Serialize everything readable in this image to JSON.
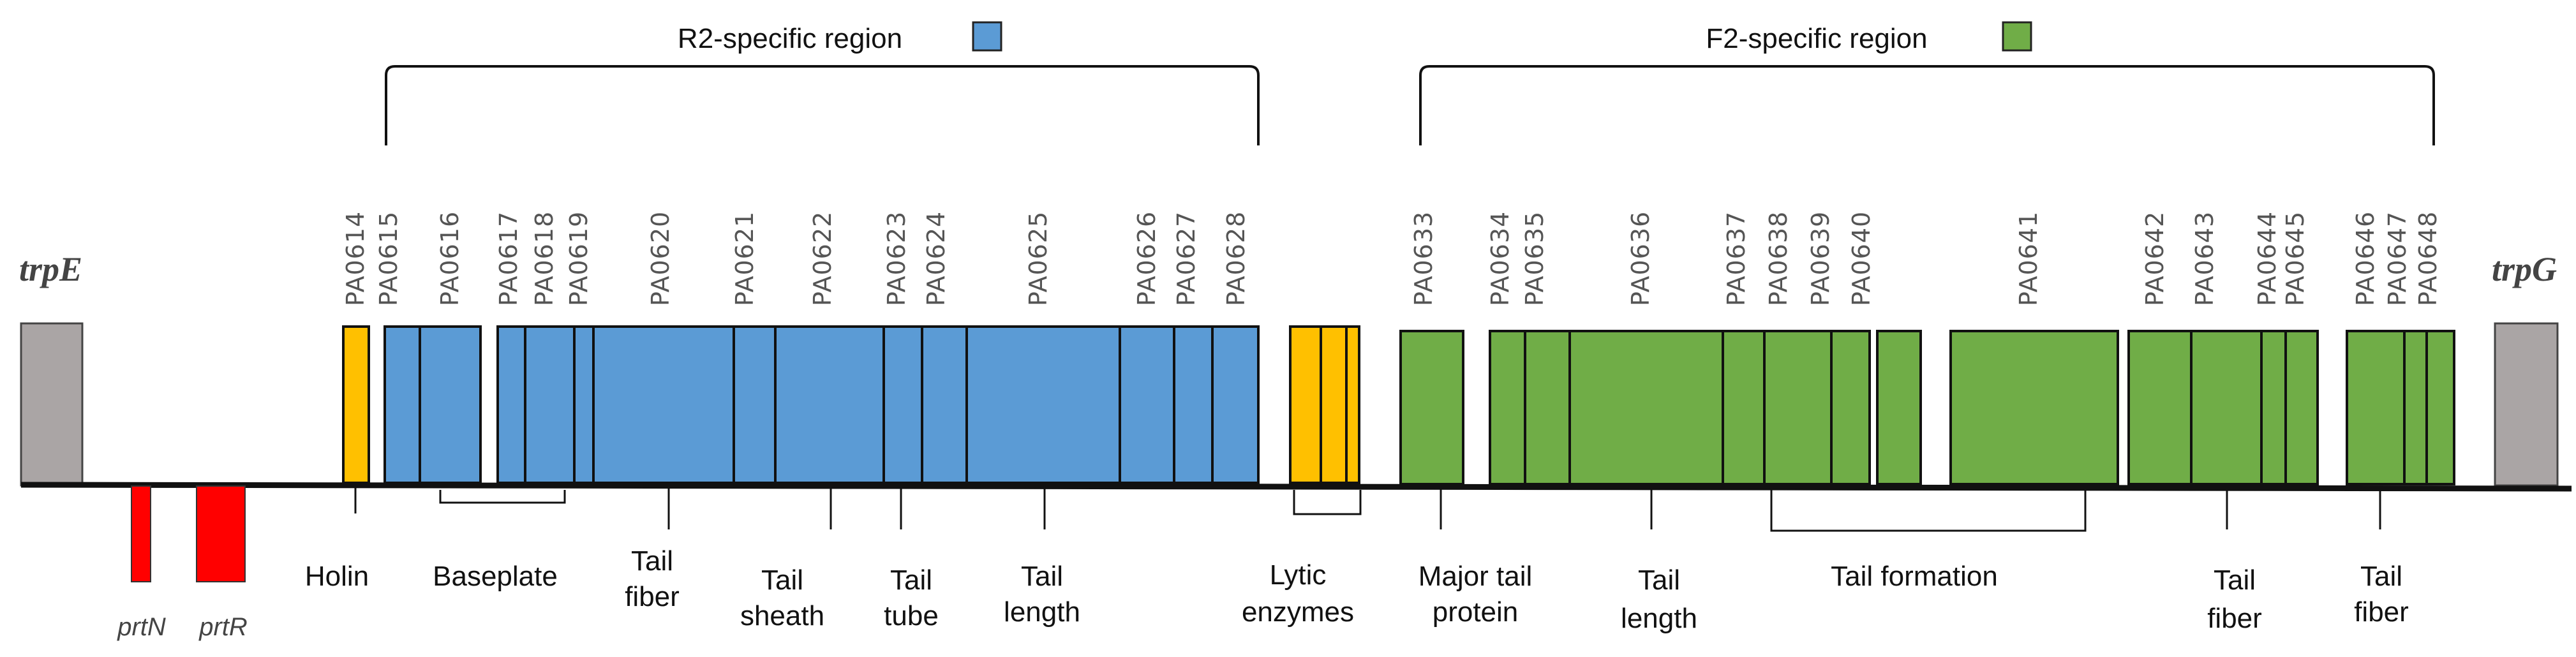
{
  "colors": {
    "r2": "#5b9bd5",
    "f2": "#70ad47",
    "yellow": "#ffc000",
    "flank": "#aaa5a5",
    "red": "#ff0000",
    "line": "#111111"
  },
  "regions": {
    "r2": "R2-specific region",
    "f2": "F2-specific region"
  },
  "flanks": {
    "left": "trpE",
    "right": "trpG"
  },
  "regulators": [
    "prtN",
    "prtR"
  ],
  "genes": [
    "PA0614",
    "PA0615",
    "PA0616",
    "PA0617",
    "PA0618",
    "PA0619",
    "PA0620",
    "PA0621",
    "PA0622",
    "PA0623",
    "PA0624",
    "PA0625",
    "PA0626",
    "PA0627",
    "PA0628",
    "PA0633",
    "PA0634",
    "PA0635",
    "PA0636",
    "PA0637",
    "PA0638",
    "PA0639",
    "PA0640",
    "PA0641",
    "PA0642",
    "PA0643",
    "PA0644",
    "PA0645",
    "PA0646",
    "PA0647",
    "PA0648"
  ],
  "functions": [
    [
      "Holin"
    ],
    [
      "Baseplate"
    ],
    [
      "Tail",
      "fiber"
    ],
    [
      "Tail",
      "sheath"
    ],
    [
      "Tail",
      "tube"
    ],
    [
      "Tail",
      "length"
    ],
    [
      "Lytic",
      "enzymes"
    ],
    [
      "Major tail",
      "protein"
    ],
    [
      "Tail",
      "length"
    ],
    [
      "Tail formation"
    ],
    [
      "Tail",
      "fiber"
    ],
    [
      "Tail",
      "fiber"
    ]
  ]
}
